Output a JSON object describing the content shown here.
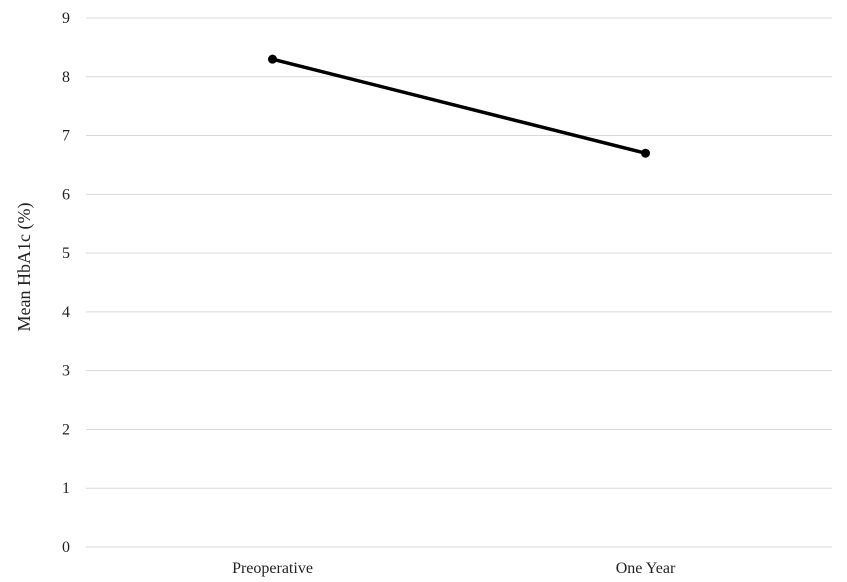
{
  "chart_data": {
    "type": "line",
    "title": "",
    "xlabel": "",
    "ylabel": "Mean HbA1c (%)",
    "categories": [
      "Preoperative",
      "One Year"
    ],
    "series": [
      {
        "values": [
          8.3,
          6.7
        ]
      }
    ],
    "ylim": [
      0,
      9
    ],
    "yticks": [
      "0",
      "1",
      "2",
      "3",
      "4",
      "5",
      "6",
      "7",
      "8",
      "9"
    ],
    "grid": true,
    "legend": "none",
    "colors": {
      "line": "#000000",
      "grid": "#d9d9d9",
      "text": "#222222"
    }
  }
}
